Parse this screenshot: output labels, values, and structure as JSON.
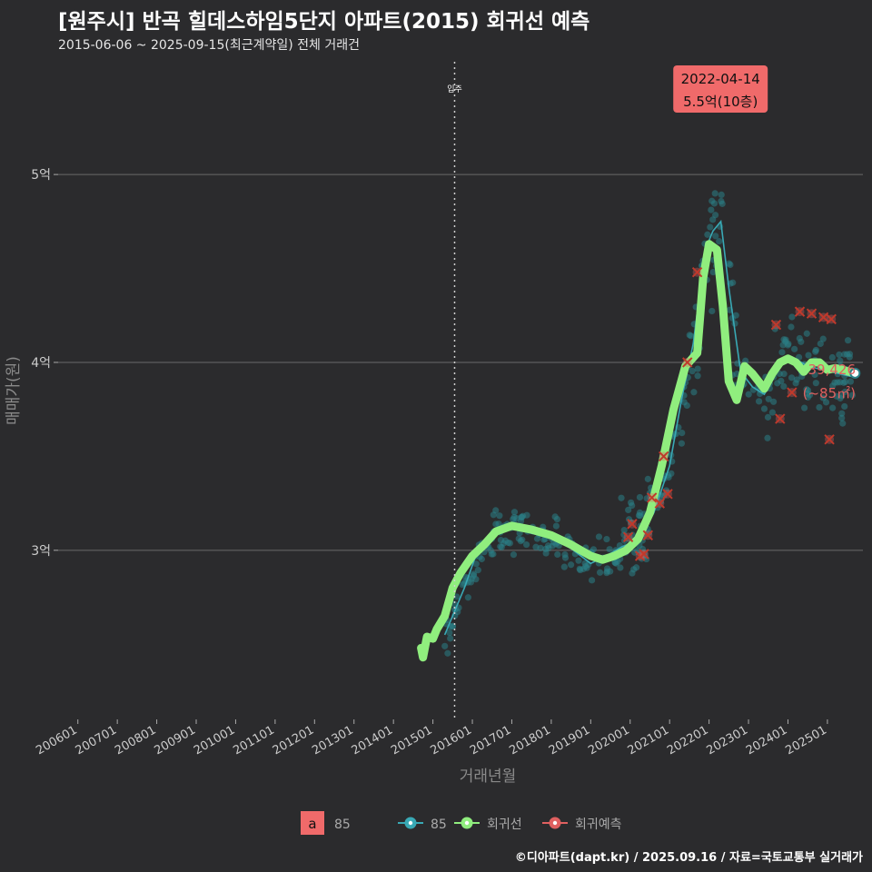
{
  "title": "[원주시] 반곡 힐데스하임5단지 아파트(2015) 회귀선 예측",
  "subtitle": "2015-06-06 ~ 2025-09-15(최근계약일) 전체 거래건",
  "footer": "©디아파트(dapt.kr) / 2025.09.16 / 자료=국토교통부 실거래가",
  "colors": {
    "background": "#2b2b2d",
    "grid": "#6a6a6a",
    "points": "#2a7f86",
    "area_line": "#39a9b5",
    "regression": "#90ee7e",
    "forecast": "#e06060",
    "label_bg": "#f06a6a"
  },
  "chart_data": {
    "type": "line",
    "xlabel": "거래년월",
    "ylabel": "매매가(원)",
    "x_tick_labels": [
      "200601",
      "200701",
      "200801",
      "200901",
      "201001",
      "201101",
      "201201",
      "201301",
      "201401",
      "201501",
      "201601",
      "201701",
      "201801",
      "201901",
      "202001",
      "202101",
      "202201",
      "202301",
      "202401",
      "202501"
    ],
    "y_ticks": [
      30000,
      40000,
      50000
    ],
    "y_tick_labels": [
      "3억",
      "4억",
      "5억"
    ],
    "ylim": [
      21000,
      56000
    ],
    "xlim": [
      2005.5,
      2025.9
    ],
    "move_in": {
      "x": 2015.55,
      "label": "입주"
    },
    "peak_annotation": {
      "x": 2022.29,
      "y": 55000,
      "date": "2022-04-14",
      "price": "5.5억(10층)"
    },
    "end_annotation": {
      "x": 2025.7,
      "y": 39426,
      "value": "39,426",
      "area": "(~85㎡)"
    },
    "series": [
      {
        "name": "회귀선",
        "x": [
          2014.7,
          2014.75,
          2014.85,
          2015.0,
          2015.1,
          2015.3,
          2015.5,
          2015.7,
          2016.0,
          2016.3,
          2016.6,
          2017.0,
          2017.5,
          2018.0,
          2018.5,
          2019.0,
          2019.3,
          2019.6,
          2019.9,
          2020.2,
          2020.5,
          2020.8,
          2021.1,
          2021.4,
          2021.7,
          2021.85,
          2022.0,
          2022.2,
          2022.35,
          2022.5,
          2022.7,
          2022.9,
          2023.1,
          2023.4,
          2023.6,
          2023.8,
          2024.0,
          2024.2,
          2024.4,
          2024.6,
          2024.8,
          2025.0,
          2025.2,
          2025.4,
          2025.55,
          2025.7
        ],
        "y": [
          24800,
          24300,
          25400,
          25300,
          25800,
          26500,
          28000,
          28800,
          29700,
          30300,
          31000,
          31300,
          31100,
          30800,
          30300,
          29700,
          29500,
          29700,
          30000,
          30600,
          32000,
          34500,
          37500,
          39800,
          40500,
          44500,
          46300,
          46000,
          43000,
          39000,
          38000,
          39800,
          39400,
          38600,
          39400,
          40000,
          40200,
          40000,
          39500,
          40000,
          40000,
          39600,
          39700,
          39600,
          39500,
          39426
        ]
      },
      {
        "name": "85",
        "x": [
          2015.3,
          2015.5,
          2015.8,
          2016.1,
          2016.5,
          2017.0,
          2017.5,
          2018.0,
          2018.5,
          2019.0,
          2019.4,
          2019.8,
          2020.2,
          2020.6,
          2021.0,
          2021.3,
          2021.6,
          2021.9,
          2022.1,
          2022.3,
          2022.5,
          2022.8,
          2023.1,
          2023.4,
          2023.8,
          2024.1,
          2024.5,
          2024.9,
          2025.3,
          2025.7
        ],
        "y": [
          25500,
          26500,
          28000,
          29800,
          30800,
          31300,
          30900,
          30700,
          30100,
          29300,
          29700,
          30200,
          30500,
          32000,
          34500,
          38000,
          41000,
          46000,
          47000,
          47500,
          44000,
          39500,
          38700,
          38300,
          39800,
          40300,
          39800,
          39600,
          39400,
          39200
        ]
      }
    ],
    "forecast_points": {
      "name": "회귀예측",
      "x": [
        2019.95,
        2020.05,
        2020.25,
        2020.35,
        2020.45,
        2020.55,
        2020.75,
        2020.85,
        2020.95,
        2021.45,
        2021.7,
        2023.7,
        2023.8,
        2024.1,
        2024.3,
        2024.6,
        2024.9,
        2025.05,
        2025.1
      ],
      "y": [
        30700,
        31400,
        29700,
        29800,
        30800,
        32800,
        32500,
        35000,
        33000,
        40000,
        44800,
        42000,
        37000,
        38400,
        42700,
        42600,
        42400,
        35900,
        42300
      ]
    },
    "legend": {
      "area_box_label": "a",
      "area_label": "85",
      "items": [
        "85",
        "회귀선",
        "회귀예측"
      ]
    }
  }
}
